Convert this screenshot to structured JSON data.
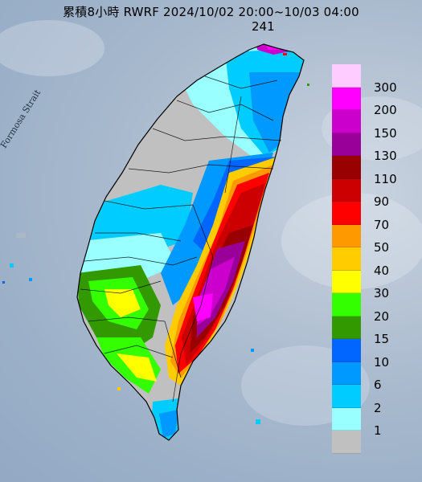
{
  "title": "累積8小時 RWRF 2024/10/02 20:00~10/03 04:00",
  "max_value": "241",
  "strait_label": "Formosa Strait",
  "legend": [
    {
      "label": "300",
      "color": "#ffccff"
    },
    {
      "label": "200",
      "color": "#ff00ff"
    },
    {
      "label": "150",
      "color": "#cc00cc"
    },
    {
      "label": "130",
      "color": "#990099"
    },
    {
      "label": "110",
      "color": "#990000"
    },
    {
      "label": "90",
      "color": "#cc0000"
    },
    {
      "label": "70",
      "color": "#ff0000"
    },
    {
      "label": "50",
      "color": "#ff9900"
    },
    {
      "label": "40",
      "color": "#ffcc00"
    },
    {
      "label": "30",
      "color": "#ffff00"
    },
    {
      "label": "20",
      "color": "#33ff00"
    },
    {
      "label": "15",
      "color": "#339900"
    },
    {
      "label": "10",
      "color": "#0066ff"
    },
    {
      "label": "6",
      "color": "#0099ff"
    },
    {
      "label": "2",
      "color": "#00ccff"
    },
    {
      "label": "1",
      "color": "#99ffff"
    },
    {
      "label": "",
      "color": "#c0c0c0"
    }
  ]
}
